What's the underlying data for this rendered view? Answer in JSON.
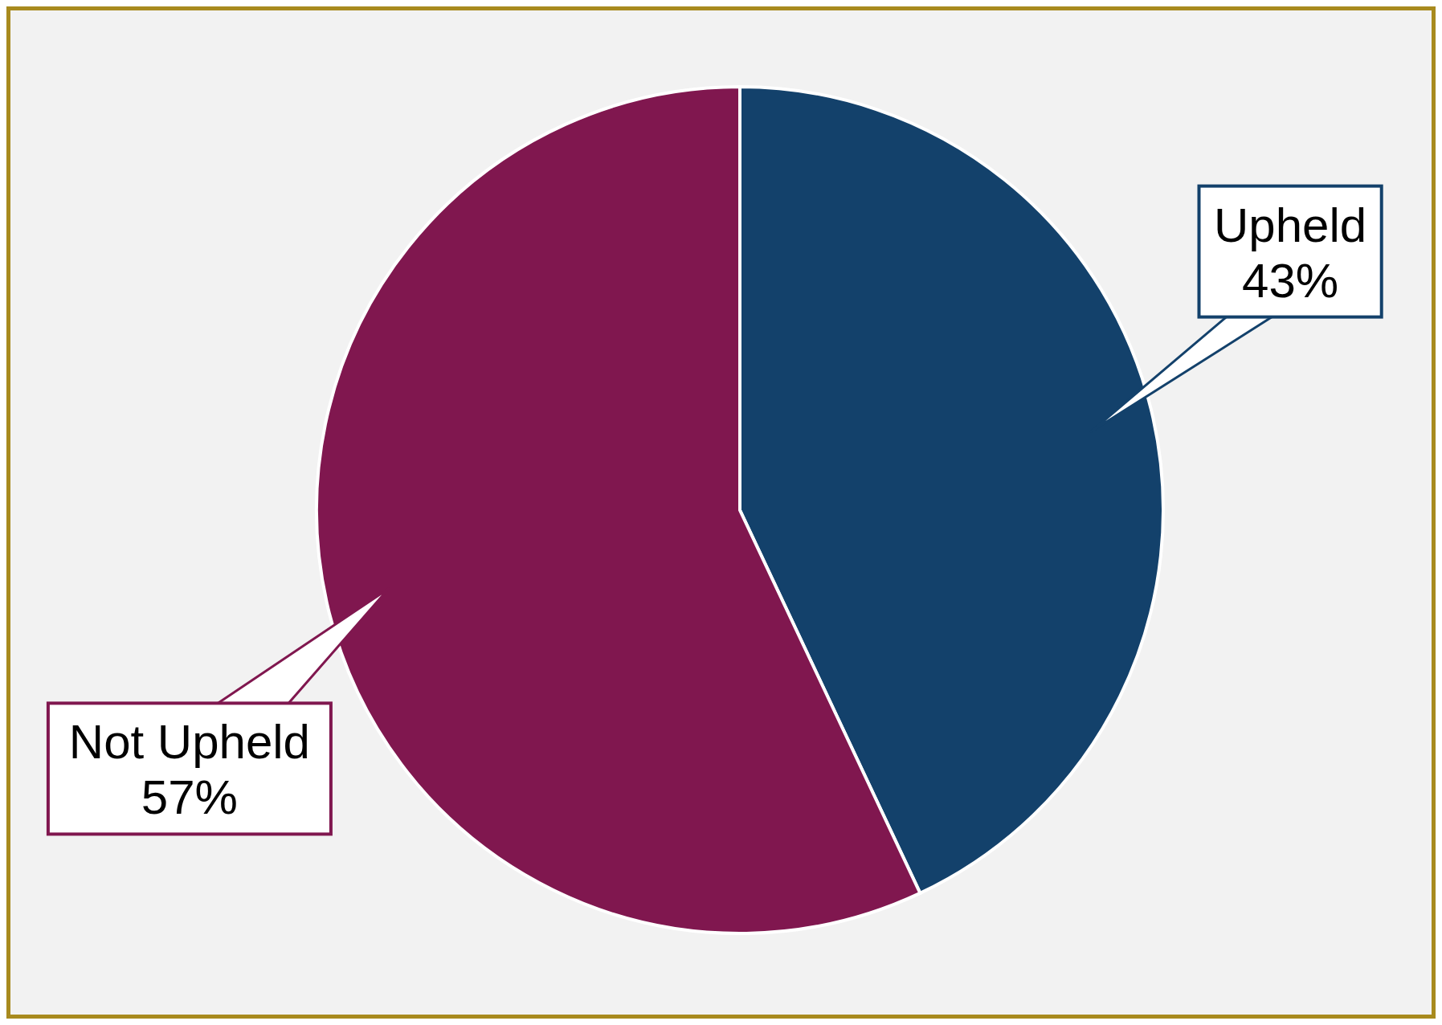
{
  "chart_data": {
    "type": "pie",
    "categories": [
      "Upheld",
      "Not Upheld"
    ],
    "values": [
      43,
      57
    ],
    "colors": [
      "#13416b",
      "#80174f"
    ],
    "value_labels": [
      "43%",
      "57%"
    ]
  }
}
